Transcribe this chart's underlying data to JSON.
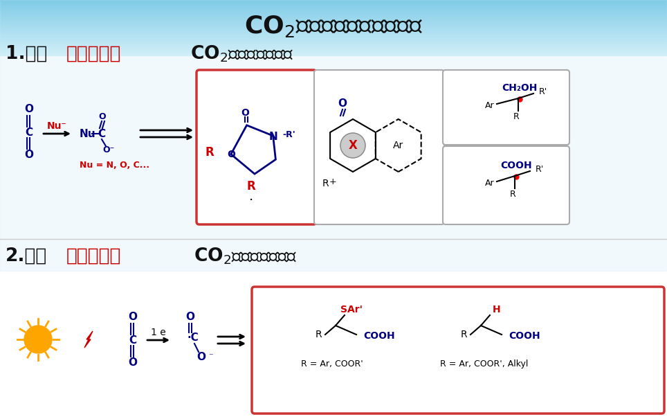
{
  "title": "CO₂高效活化与选择性转化",
  "sec1_prefix": "1.通过",
  "sec1_red": "双电子活化",
  "sec1_suffix": "CO₂实现选择性转化",
  "sec2_prefix": "2.通过",
  "sec2_red": "单电子活化",
  "sec2_suffix": "CO₂实现选择性转化",
  "nu_eq": "Nu = N, O, C...",
  "one_e": "1 e",
  "r_eq1": "R = Ar, COOR’",
  "r_eq2": "R = Ar, COOR’, Alkyl",
  "blue": "#000080",
  "red": "#CC0000",
  "black": "#111111",
  "gray": "#888888",
  "box_red": "#CC3333",
  "box_gray": "#AAAAAA",
  "bg_blue_top": "#5BBCD6",
  "bg_blue_fade": "#A8D8EA",
  "title_fs": 26,
  "sec_fs": 19,
  "chem_fs": 11,
  "small_fs": 9
}
